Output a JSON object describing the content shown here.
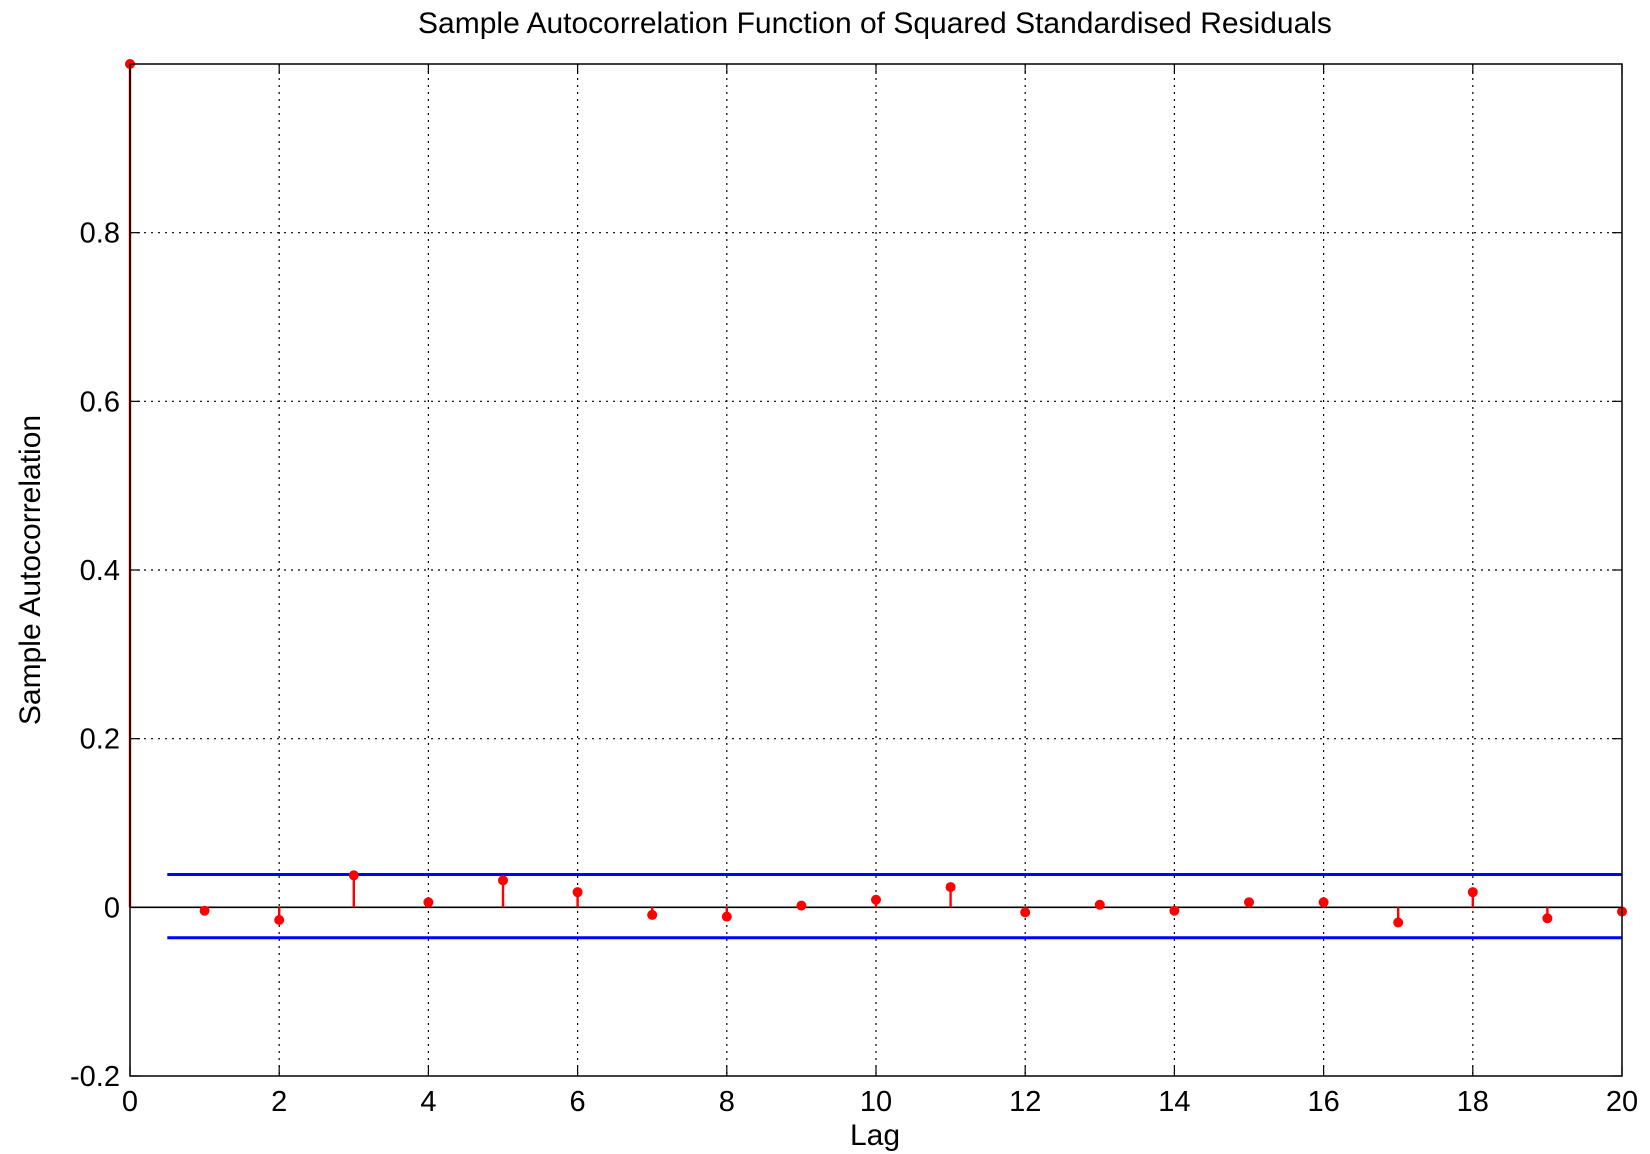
{
  "chart_data": {
    "type": "stem",
    "title": "Sample Autocorrelation Function of Squared Standardised Residuals",
    "xlabel": "Lag",
    "ylabel": "Sample Autocorrelation",
    "xlim": [
      0,
      20
    ],
    "ylim": [
      -0.2,
      1.0
    ],
    "grid": true,
    "x_ticks": [
      0,
      2,
      4,
      6,
      8,
      10,
      12,
      14,
      16,
      18,
      20
    ],
    "x_tick_labels": [
      "0",
      "2",
      "4",
      "6",
      "8",
      "10",
      "12",
      "14",
      "16",
      "18",
      "20"
    ],
    "y_ticks": [
      -0.2,
      0,
      0.2,
      0.4,
      0.6,
      0.8
    ],
    "y_tick_labels": [
      "-0.2",
      "0",
      "0.2",
      "0.4",
      "0.6",
      "0.8"
    ],
    "lags": [
      0,
      1,
      2,
      3,
      4,
      5,
      6,
      7,
      8,
      9,
      10,
      11,
      12,
      13,
      14,
      15,
      16,
      17,
      18,
      19,
      20
    ],
    "acf": [
      1.0,
      -0.004,
      -0.015,
      0.038,
      0.006,
      0.032,
      0.018,
      -0.009,
      -0.011,
      0.002,
      0.009,
      0.024,
      -0.006,
      0.003,
      -0.004,
      0.006,
      0.006,
      -0.018,
      0.018,
      -0.013,
      -0.005
    ],
    "confidence_bounds": {
      "upper": 0.039,
      "lower": -0.036,
      "x_range": [
        0.5,
        20
      ]
    },
    "colors": {
      "stem": "#ff0000",
      "bounds": "#0000ff",
      "zero_line": "#000000",
      "grid": "#000000"
    }
  }
}
